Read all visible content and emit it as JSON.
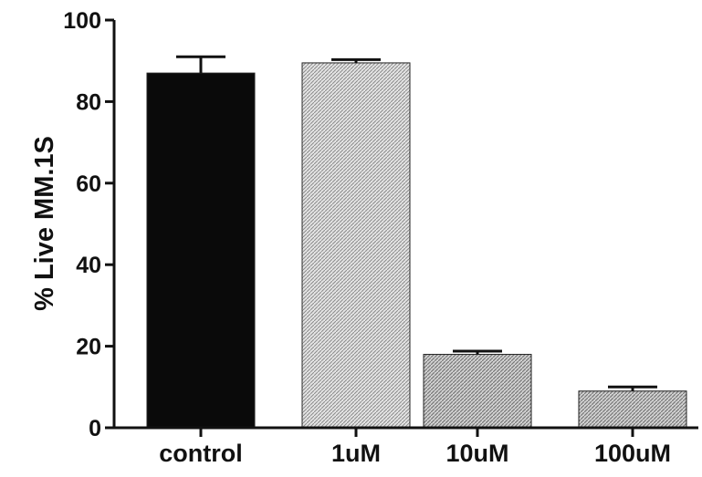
{
  "chart_data": {
    "type": "bar",
    "categories": [
      "control",
      "1uM",
      "10uM",
      "100uM"
    ],
    "values": [
      87,
      89.5,
      18,
      9
    ],
    "errors": [
      4,
      0.8,
      0.8,
      1
    ],
    "ylabel": "% Live MM.1S",
    "xlabel": "",
    "ylim": [
      0,
      100
    ],
    "yticks": [
      0,
      20,
      40,
      60,
      80,
      100
    ],
    "grid": false,
    "bar_colors": [
      "#0a0a0a",
      "#cfcfcf",
      "#bdbdbd",
      "#b7b7b7"
    ],
    "axis_color": "#111111"
  }
}
